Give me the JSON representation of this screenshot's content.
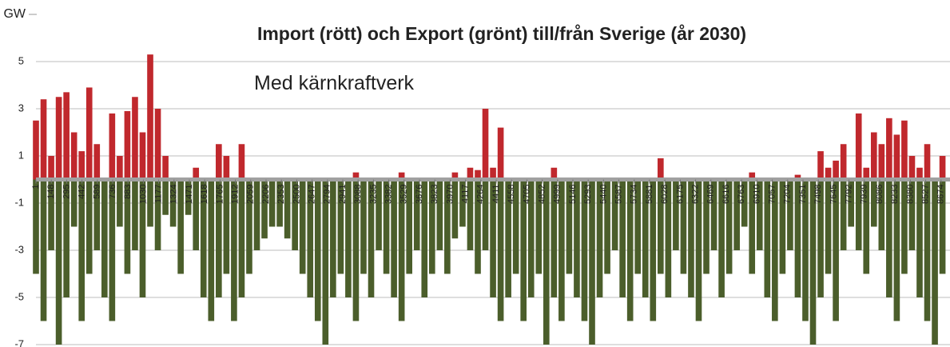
{
  "chart_data": {
    "type": "bar",
    "title": "Import (rött) och Export (grönt) till/från Sverige (år 2030)",
    "annotation": "Med kärnkraftverk",
    "y_label": "GW",
    "x": [
      1,
      74,
      147,
      220,
      293,
      366,
      439,
      512,
      585,
      658,
      731,
      804,
      877,
      950,
      1023,
      1096,
      1169,
      1242,
      1315,
      1388,
      1461,
      1534,
      1607,
      1680,
      1753,
      1826,
      1899,
      1972,
      2045,
      2118,
      2191,
      2264,
      2337,
      2410,
      2483,
      2556,
      2629,
      2702,
      2775,
      2848,
      2921,
      2994,
      3067,
      3140,
      3213,
      3286,
      3359,
      3432,
      3505,
      3578,
      3651,
      3724,
      3797,
      3870,
      3943,
      4016,
      4089,
      4162,
      4235,
      4308,
      4381,
      4454,
      4527,
      4600,
      4673,
      4746,
      4819,
      4892,
      4965,
      5038,
      5111,
      5184,
      5257,
      5330,
      5403,
      5476,
      5549,
      5622,
      5695,
      5768,
      5841,
      5914,
      5987,
      6060,
      6133,
      6206,
      6279,
      6352,
      6425,
      6498,
      6571,
      6644,
      6717,
      6790,
      6863,
      6936,
      7009,
      7082,
      7155,
      7228,
      7301,
      7374,
      7447,
      7520,
      7593,
      7666,
      7739,
      7812,
      7885,
      7958,
      8031,
      8104,
      8177,
      8250,
      8323,
      8396,
      8469,
      8542,
      8615,
      8688
    ],
    "series": [
      {
        "color": "#c0282d",
        "values": [
          2.5,
          3.4,
          1,
          3.5,
          3.7,
          2,
          1.2,
          3.9,
          1.5,
          0,
          2.8,
          1,
          2.9,
          3.5,
          2,
          5.3,
          3,
          1,
          0,
          0,
          0,
          0.5,
          0,
          0,
          1.5,
          1,
          0,
          1.5,
          0,
          0,
          0,
          0,
          0,
          0,
          0,
          0,
          0,
          0,
          0,
          0,
          0,
          0,
          0.3,
          0,
          0,
          0,
          0,
          0,
          0.3,
          0,
          0,
          0,
          0,
          0,
          0,
          0.3,
          0,
          0.5,
          0.4,
          3,
          0.5,
          2.2,
          0,
          0,
          0,
          0,
          0,
          0,
          0.5,
          0,
          0,
          0,
          0,
          0,
          0,
          0,
          0,
          0,
          0,
          0,
          0,
          0,
          0.9,
          0,
          0,
          0,
          0,
          0,
          0,
          0,
          0,
          0,
          0,
          0,
          0.3,
          0,
          0,
          0,
          0,
          0,
          0.2,
          0,
          0,
          1.2,
          0.5,
          0.8,
          1.5,
          0,
          2.8,
          0.5,
          2,
          1.5,
          2.6,
          1.9,
          2.5,
          1,
          0.5,
          1.5,
          0,
          1
        ]
      },
      {
        "color": "#4b5e2b",
        "values": [
          -4,
          -6,
          -3,
          -7,
          -5,
          -2,
          -6,
          -4,
          -3,
          -5,
          -6,
          -2,
          -4,
          -3,
          -5,
          -2,
          -3,
          -1.5,
          -2,
          -4,
          -1.5,
          -3,
          -5,
          -6,
          -5,
          -4,
          -6,
          -5,
          -4,
          -3,
          -2.5,
          -2,
          -2,
          -2.5,
          -3,
          -4,
          -5,
          -6,
          -7,
          -5,
          -4,
          -5,
          -6,
          -4,
          -5,
          -3,
          -4,
          -5,
          -6,
          -4,
          -3,
          -5,
          -4,
          -3,
          -4,
          -2.5,
          -2,
          -3,
          -4,
          -3,
          -5,
          -6,
          -5,
          -4,
          -6,
          -5,
          -4,
          -7,
          -5,
          -6,
          -4,
          -5,
          -6,
          -7,
          -5,
          -4,
          -3,
          -5,
          -6,
          -4,
          -5,
          -6,
          -4,
          -5,
          -3,
          -4,
          -5,
          -6,
          -4,
          -3,
          -5,
          -4,
          -3,
          -2,
          -4,
          -3,
          -5,
          -6,
          -4,
          -3,
          -5,
          -6,
          -7,
          -5,
          -4,
          -6,
          -3,
          -2,
          -3,
          -4,
          -2,
          -3,
          -5,
          -6,
          -4,
          -3,
          -5,
          -6,
          -7,
          -4
        ]
      }
    ],
    "xlim": [
      1,
      8760
    ],
    "xticks": [
      1,
      148,
      295,
      442,
      589,
      736,
      883,
      1030,
      1177,
      1324,
      1471,
      1618,
      1765,
      1912,
      2059,
      2206,
      2353,
      2500,
      2647,
      2794,
      2941,
      3088,
      3235,
      3382,
      3529,
      3676,
      3823,
      3970,
      4117,
      4264,
      4411,
      4558,
      4705,
      4852,
      4999,
      5146,
      5293,
      5440,
      5587,
      5734,
      5881,
      6028,
      6175,
      6322,
      6469,
      6616,
      6763,
      6910,
      7057,
      7204,
      7351,
      7498,
      7645,
      7792,
      7939,
      8086,
      8233,
      8380,
      8527,
      8674
    ],
    "ylim": [
      -7,
      7
    ],
    "yticks": [
      -7,
      -5,
      -3,
      -1,
      1,
      3,
      5
    ],
    "grid": true,
    "zero_line_color": "#a0a0a0"
  }
}
